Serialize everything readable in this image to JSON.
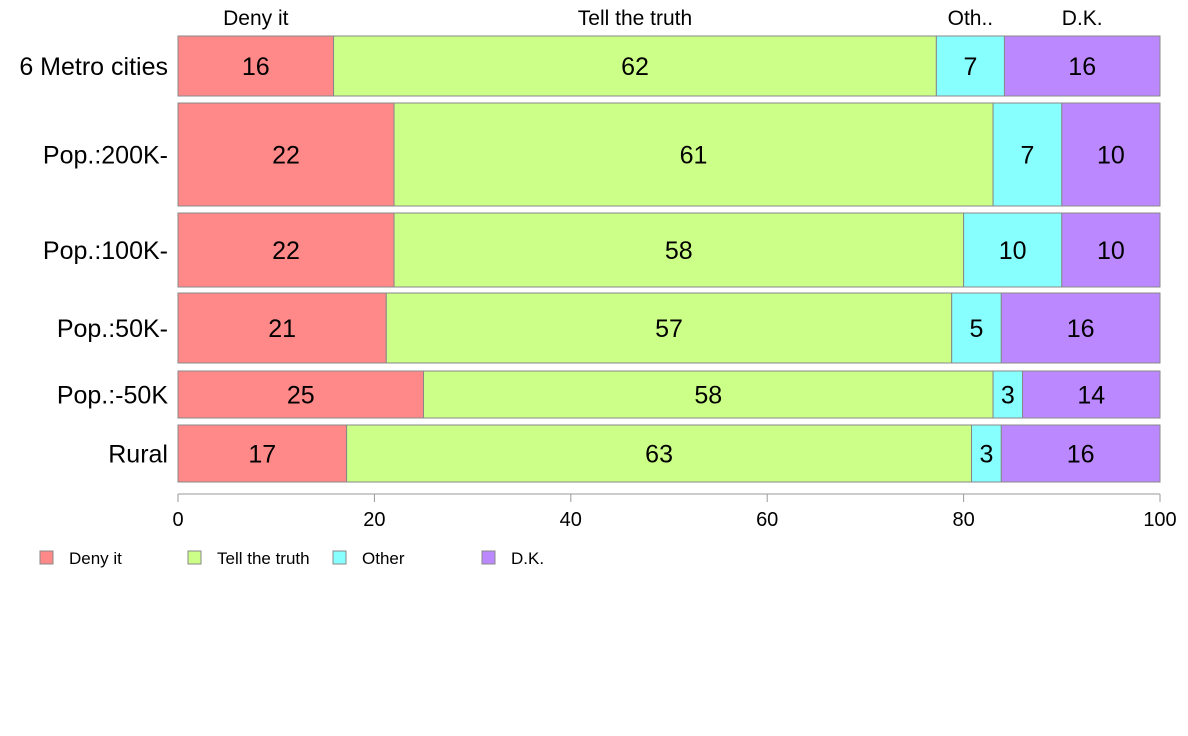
{
  "chart_data": {
    "type": "bar",
    "orientation": "horizontal",
    "stacked": true,
    "categories": [
      "6 Metro cities",
      "Pop.:200K-",
      "Pop.:100K-",
      "Pop.:50K-",
      "Pop.:-50K",
      "Rural"
    ],
    "series": [
      {
        "name": "Deny it",
        "values": [
          16,
          22,
          22,
          21,
          25,
          17
        ],
        "color": "#ff8888"
      },
      {
        "name": "Tell the truth",
        "values": [
          62,
          61,
          58,
          57,
          58,
          63
        ],
        "color": "#ccff88"
      },
      {
        "name": "Other",
        "values": [
          7,
          7,
          10,
          5,
          3,
          3
        ],
        "color": "#88ffff"
      },
      {
        "name": "D.K.",
        "values": [
          16,
          10,
          10,
          16,
          14,
          16
        ],
        "color": "#bb88ff"
      }
    ],
    "column_headers": [
      "Deny it",
      "Tell the truth",
      "Oth..",
      "D.K."
    ],
    "xlim": [
      0,
      100
    ],
    "x_ticks": [
      "0",
      "20",
      "40",
      "60",
      "80",
      "100"
    ],
    "grid": false,
    "legend_position": "bottom-left",
    "title": "",
    "xlabel": "",
    "ylabel": ""
  }
}
